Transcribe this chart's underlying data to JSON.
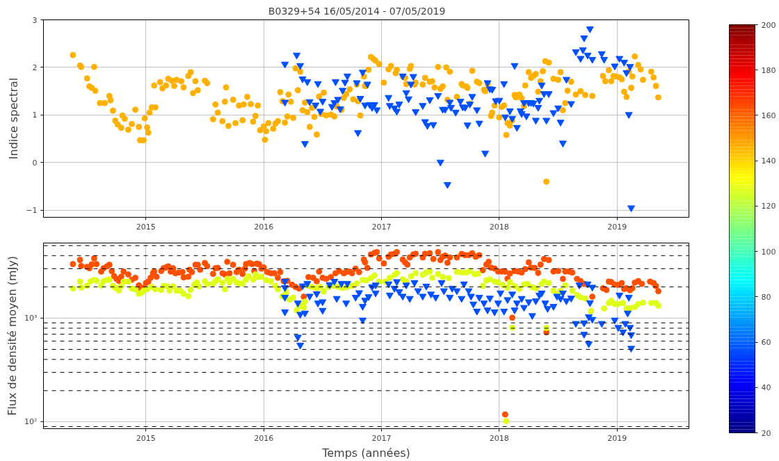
{
  "chart_data": [
    {
      "type": "scatter",
      "title": "B0329+54       16/05/2014 - 07/05/2019",
      "ylabel": "Indice spectral",
      "xlim": [
        2014.13,
        2019.61
      ],
      "xticks": [
        2015,
        2016,
        2017,
        2018,
        2019
      ],
      "ylim": [
        -1.15,
        3
      ],
      "yticks": [
        {
          "value": -1,
          "label": "−1"
        },
        0,
        1,
        2,
        3
      ],
      "grid": true,
      "series": [
        {
          "color": "#ffb000",
          "marker": "circle",
          "x": [
            2014.38,
            2014.44,
            2014.45,
            2014.56,
            2014.5,
            2014.52,
            2014.54,
            2014.57,
            2014.61,
            2014.65,
            2014.69,
            2014.7,
            2014.72,
            2014.74,
            2014.76,
            2014.79,
            2014.8,
            2014.82,
            2014.85,
            2014.88,
            2014.91,
            2014.94,
            2014.95,
            2014.98,
            2014.99,
            2015.01,
            2015.02,
            2015.03,
            2015.05,
            2015.08,
            2015.07,
            2015.12,
            2015.14,
            2015.17,
            2015.19,
            2015.22,
            2015.24,
            2015.26,
            2015.3,
            2015.32,
            2015.36,
            2015.38,
            2015.4,
            2015.42,
            2015.44,
            2015.5,
            2015.52,
            2015.57,
            2015.59,
            2015.61,
            2015.65,
            2015.67,
            2015.68,
            2015.7,
            2015.74,
            2015.76,
            2015.79,
            2015.82,
            2015.86,
            2015.83,
            2015.89,
            2015.91,
            2015.93,
            2015.95,
            2015.97,
            2016.0,
            2016.01,
            2016.02,
            2016.04,
            2016.08,
            2016.1,
            2016.12,
            2016.14,
            2016.16,
            2016.18,
            2016.2,
            2016.21,
            2016.23,
            2016.25,
            2016.27,
            2016.29,
            2016.31,
            2016.33,
            2016.35,
            2016.37,
            2016.39,
            2016.41,
            2016.43,
            2016.45,
            2016.47,
            2016.49,
            2016.51,
            2016.53,
            2016.57,
            2016.6,
            2016.62,
            2016.66,
            2016.68,
            2016.7,
            2016.73,
            2016.76,
            2016.79,
            2016.8,
            2016.82,
            2016.85,
            2016.86,
            2016.89,
            2016.91,
            2016.93,
            2016.95,
            2016.98,
            2016.87,
            2017.02,
            2017.06,
            2017.08,
            2017.12,
            2017.13,
            2017.18,
            2017.2,
            2017.21,
            2017.24,
            2017.25,
            2017.28,
            2017.29,
            2017.35,
            2017.37,
            2017.41,
            2017.43,
            2017.45,
            2017.48,
            2017.5,
            2017.52,
            2017.55,
            2017.56,
            2017.58,
            2017.64,
            2017.68,
            2017.69,
            2017.72,
            2017.73,
            2017.75,
            2017.77,
            2017.81,
            2017.83,
            2017.87,
            2017.88,
            2017.9,
            2017.93,
            2017.94,
            2017.96,
            2018.0,
            2018.02,
            2018.04,
            2018.06,
            2018.07,
            2018.09,
            2018.11,
            2018.13,
            2018.14,
            2018.17,
            2018.19,
            2018.21,
            2018.22,
            2018.25,
            2018.27,
            2018.29,
            2018.31,
            2018.33,
            2018.35,
            2018.37,
            2018.39,
            2018.4,
            2018.42,
            2018.46,
            2018.5,
            2018.52,
            2018.54,
            2018.56,
            2018.58,
            2018.61,
            2018.65,
            2018.69,
            2018.73,
            2018.79,
            2018.88,
            2018.9,
            2018.93,
            2018.95,
            2018.97,
            2018.99,
            2019.02,
            2019.04,
            2019.06,
            2019.08,
            2019.1,
            2019.12,
            2019.13,
            2019.15,
            2019.18,
            2019.2,
            2019.22,
            2019.29,
            2019.31,
            2019.33,
            2019.35
          ],
          "values": [
            2.26,
            2.04,
            2.01,
            2.01,
            1.77,
            1.6,
            1.57,
            1.51,
            1.25,
            1.25,
            1.4,
            1.31,
            1.09,
            0.88,
            0.8,
            0.73,
            0.99,
            0.92,
            0.69,
            0.81,
            1.11,
            0.75,
            0.47,
            0.47,
            0.93,
            0.74,
            0.63,
            1.05,
            1.16,
            1.16,
            1.62,
            1.69,
            1.56,
            1.62,
            1.76,
            1.72,
            1.61,
            1.74,
            1.71,
            1.58,
            1.82,
            1.9,
            1.46,
            1.71,
            1.52,
            1.72,
            1.67,
            0.91,
            1.22,
            1.05,
            0.87,
            1.28,
            1.58,
            0.77,
            1.32,
            0.83,
            1.2,
            0.89,
            1.38,
            1.22,
            1.23,
            0.86,
            0.98,
            1.2,
            0.68,
            0.76,
            0.48,
            0.66,
            0.83,
            0.71,
            0.82,
            0.87,
            1.48,
            1.29,
            0.84,
            0.97,
            1.43,
            1.28,
            0.94,
            1.98,
            1.52,
            1.91,
            1.1,
            1.26,
            1.06,
            0.75,
            1.15,
            0.96,
            0.59,
            1.39,
            1.02,
            1.47,
            0.99,
            1.01,
            0.97,
            1.18,
            1.11,
            1.36,
            1.44,
            1.54,
            1.33,
            1.64,
            1.29,
            0.99,
            1.81,
            1.61,
            1.95,
            2.22,
            2.18,
            2.14,
            2.07,
            1.61,
            1.68,
            1.96,
            2.03,
            1.88,
            1.95,
            1.81,
            1.78,
            1.65,
            1.97,
            2.03,
            1.64,
            1.68,
            1.64,
            1.78,
            1.7,
            1.71,
            1.58,
            2.01,
            1.55,
            1.6,
            2.0,
            1.32,
            1.91,
            1.38,
            1.65,
            1.62,
            1.6,
            1.57,
            1.24,
            1.93,
            1.7,
            1.67,
            1.53,
            1.5,
            1.65,
            0.98,
            1.05,
            1.2,
            0.95,
            1.17,
            1.2,
            0.58,
            0.83,
            0.78,
            0.89,
            1.42,
            1.37,
            1.43,
            1.35,
            1.19,
            1.62,
            1.9,
            1.78,
            1.82,
            1.86,
            1.49,
            1.71,
            1.92,
            2.13,
            -0.4,
            2.1,
            1.76,
            1.74,
            1.9,
            1.1,
            1.25,
            1.51,
            1.7,
            1.43,
            1.5,
            1.42,
            1.4,
            1.82,
            1.71,
            1.94,
            1.71,
            1.82,
            1.81,
            1.79,
            1.75,
            1.49,
            1.38,
            1.92,
            1.57,
            1.81,
            2.23,
            2.05,
            1.96,
            1.74,
            1.91,
            1.79,
            1.61,
            1.37
          ]
        },
        {
          "color": "#0050ff",
          "marker": "triangle",
          "x": [
            2016.18,
            2016.28,
            2016.31,
            2016.33,
            2016.37,
            2016.18,
            2016.35,
            2016.39,
            2016.44,
            2016.46,
            2016.48,
            2016.5,
            2016.58,
            2016.6,
            2016.61,
            2016.63,
            2016.65,
            2016.67,
            2016.69,
            2016.71,
            2016.79,
            2016.8,
            2016.82,
            2016.84,
            2016.86,
            2016.88,
            2016.9,
            2016.92,
            2016.94,
            2016.96,
            2017.06,
            2017.07,
            2017.11,
            2017.13,
            2017.15,
            2017.18,
            2017.21,
            2017.23,
            2017.25,
            2017.27,
            2017.29,
            2017.35,
            2017.37,
            2017.39,
            2017.41,
            2017.44,
            2017.48,
            2017.5,
            2017.52,
            2017.54,
            2017.56,
            2017.58,
            2017.59,
            2017.63,
            2017.67,
            2017.69,
            2017.71,
            2017.73,
            2017.75,
            2017.77,
            2017.81,
            2017.83,
            2017.88,
            2017.9,
            2017.92,
            2017.94,
            2017.97,
            2018.0,
            2018.04,
            2018.05,
            2018.09,
            2018.11,
            2018.13,
            2018.15,
            2018.18,
            2018.19,
            2018.21,
            2018.23,
            2018.25,
            2018.27,
            2018.29,
            2018.31,
            2018.33,
            2018.34,
            2018.36,
            2018.38,
            2018.4,
            2018.42,
            2018.46,
            2018.5,
            2018.52,
            2018.54,
            2018.57,
            2018.61,
            2018.65,
            2018.69,
            2018.71,
            2018.72,
            2018.75,
            2018.77,
            2018.79,
            2018.87,
            2018.89,
            2018.98,
            2019.02,
            2019.06,
            2019.08,
            2019.1,
            2019.11,
            2019.12
          ],
          "values": [
            2.07,
            2.26,
            2.04,
            1.76,
            1.7,
            1.27,
            0.4,
            1.28,
            1.21,
            1.66,
            1.08,
            1.29,
            1.18,
            1.26,
            1.7,
            1.33,
            1.13,
            1.52,
            1.69,
            1.82,
            1.68,
            0.63,
            1.35,
            1.9,
            1.21,
            1.65,
            1.22,
            1.16,
            1.22,
            1.11,
            1.37,
            1.2,
            1.15,
            1.08,
            1.23,
            1.82,
            1.47,
            1.34,
            1.65,
            1.81,
            1.07,
            1.2,
            0.86,
            0.78,
            1.32,
            0.8,
            1.41,
            0.01,
            1.12,
            1.12,
            -0.46,
            1.27,
            1.16,
            1.06,
            1.29,
            1.17,
            1.16,
            0.79,
            1.23,
            1.39,
            1.11,
            0.83,
            0.2,
            1.68,
            1.55,
            1.54,
            1.3,
            1.31,
            1.66,
            0.96,
            1.09,
            0.93,
            2.04,
            0.74,
            1.09,
            1.03,
            1.26,
            0.98,
            1.26,
            1.26,
            1.25,
            0.89,
            1.16,
            1.31,
            1.63,
            1.45,
            0.89,
            1.45,
            1.05,
            1.15,
            0.85,
            0.41,
            1.75,
            1.24,
            2.33,
            2.19,
            2.37,
            2.62,
            2.26,
            2.81,
            2.17,
            2.29,
            2.17,
            2.03,
            2.19,
            2.11,
            1.89,
            1.01,
            2.02,
            -0.95
          ]
        }
      ]
    },
    {
      "type": "scatter",
      "xlabel": "Temps (années)",
      "ylabel": "Flux de densité moyen (mJy)",
      "log": true,
      "xlim": [
        2014.13,
        2019.61
      ],
      "xticks": [
        2015,
        2016,
        2017,
        2018,
        2019
      ],
      "ylim": [
        86,
        5300
      ],
      "yticks": [
        {
          "value": 100,
          "label": "10²"
        },
        {
          "value": 1000,
          "label": "10³"
        }
      ],
      "grid": true,
      "clim": [
        20,
        200
      ],
      "cticks": [
        20,
        40,
        60,
        80,
        100,
        120,
        140,
        160,
        180,
        200
      ],
      "ref_lines": [
        {
          "axis": "y",
          "value": 90,
          "color": "#000000",
          "line_style": "dashed"
        },
        {
          "axis": "y",
          "value": 200,
          "color": "#000000",
          "line_style": "dashed"
        },
        {
          "axis": "y",
          "value": 300,
          "color": "#000000",
          "line_style": "dashed"
        },
        {
          "axis": "y",
          "value": 400,
          "color": "#000000",
          "line_style": "dashed"
        },
        {
          "axis": "y",
          "value": 500,
          "color": "#000000",
          "line_style": "dashed"
        },
        {
          "axis": "y",
          "value": 600,
          "color": "#000000",
          "line_style": "dashed"
        },
        {
          "axis": "y",
          "value": 700,
          "color": "#000000",
          "line_style": "dashed"
        },
        {
          "axis": "y",
          "value": 800,
          "color": "#000000",
          "line_style": "dashed"
        },
        {
          "axis": "y",
          "value": 900,
          "color": "#000000",
          "line_style": "dashed"
        },
        {
          "axis": "y",
          "value": 2000,
          "color": "#000000",
          "line_style": "dashed"
        },
        {
          "axis": "y",
          "value": 3000,
          "color": "#000000",
          "line_style": "dashed"
        },
        {
          "axis": "y",
          "value": 4000,
          "color": "#000000",
          "line_style": "dashed"
        },
        {
          "axis": "y",
          "value": 5000,
          "color": "#000000",
          "line_style": "dashed"
        }
      ],
      "series": [
        {
          "color": "#ff5000",
          "marker": "circle",
          "x": [
            2014.38,
            2014.44,
            2014.45,
            2014.5,
            2014.52,
            2014.54,
            2014.56,
            2014.58,
            2014.62,
            2014.64,
            2014.67,
            2014.69,
            2014.71,
            2014.73,
            2014.75,
            2014.77,
            2014.79,
            2014.81,
            2014.85,
            2014.88,
            2014.91,
            2014.94,
            2014.95,
            2014.98,
            2015.0,
            2015.02,
            2015.04,
            2015.06,
            2015.07,
            2015.09,
            2015.13,
            2015.15,
            2015.17,
            2015.19,
            2015.21,
            2015.23,
            2015.25,
            2015.28,
            2015.31,
            2015.32,
            2015.36,
            2015.37,
            2015.39,
            2015.42,
            2015.44,
            2015.46,
            2015.5,
            2015.52,
            2015.57,
            2015.59,
            2015.61,
            2015.65,
            2015.67,
            2015.69,
            2015.71,
            2015.74,
            2015.77,
            2015.79,
            2015.82,
            2015.84,
            2015.85,
            2015.88,
            2015.9,
            2015.92,
            2015.94,
            2015.96,
            2015.98,
            2016.0,
            2016.03,
            2016.06,
            2016.09,
            2016.12,
            2016.14,
            2016.17,
            2016.2,
            2016.24,
            2016.27,
            2016.3,
            2016.34,
            2016.38,
            2016.42,
            2016.45,
            2016.47,
            2016.5,
            2016.53,
            2016.57,
            2016.61,
            2016.64,
            2016.68,
            2016.7,
            2016.73,
            2016.75,
            2016.78,
            2016.81,
            2016.85,
            2016.86,
            2016.88,
            2016.91,
            2016.94,
            2016.96,
            2016.98,
            2017.02,
            2017.06,
            2017.08,
            2017.11,
            2017.13,
            2017.18,
            2017.2,
            2017.22,
            2017.24,
            2017.27,
            2017.29,
            2017.35,
            2017.37,
            2017.41,
            2017.44,
            2017.48,
            2017.5,
            2017.52,
            2017.54,
            2017.56,
            2017.58,
            2017.64,
            2017.68,
            2017.71,
            2017.74,
            2017.77,
            2017.8,
            2017.83,
            2017.86,
            2017.89,
            2017.91,
            2017.93,
            2017.96,
            2017.99,
            2018.02,
            2018.05,
            2018.07,
            2018.09,
            2018.11,
            2018.05,
            2018.13,
            2018.16,
            2018.19,
            2018.22,
            2018.25,
            2018.27,
            2018.3,
            2018.33,
            2018.35,
            2018.38,
            2018.4,
            2018.42,
            2018.46,
            2018.5,
            2018.54,
            2018.56,
            2018.59,
            2018.62,
            2018.66,
            2018.69,
            2018.72,
            2018.79,
            2018.88,
            2018.91,
            2018.93,
            2018.95,
            2018.98,
            2019.01,
            2019.04,
            2019.06,
            2019.08,
            2019.11,
            2019.13,
            2019.15,
            2019.18,
            2019.21,
            2019.28,
            2019.31,
            2019.33,
            2019.35
          ],
          "values": [
            3320,
            3650,
            3190,
            3120,
            3030,
            3300,
            3770,
            3320,
            2810,
            3030,
            3160,
            3270,
            2840,
            2540,
            2390,
            2290,
            2510,
            2810,
            2640,
            2350,
            2450,
            2070,
            1930,
            1970,
            2180,
            2250,
            2450,
            2710,
            2810,
            2510,
            2850,
            3030,
            3080,
            3160,
            2810,
            3030,
            2710,
            2750,
            2780,
            2470,
            2510,
            2930,
            2780,
            3270,
            3270,
            2930,
            3400,
            3170,
            2670,
            3030,
            3050,
            2710,
            2640,
            3490,
            2710,
            3270,
            2780,
            2930,
            2670,
            3000,
            3320,
            3400,
            3320,
            2850,
            3350,
            3320,
            3000,
            3080,
            2780,
            2710,
            2710,
            2450,
            2780,
            2270,
            2290,
            2100,
            2000,
            1930,
            1610,
            2490,
            2450,
            2270,
            2810,
            2450,
            2390,
            2490,
            2710,
            2850,
            2710,
            2780,
            2810,
            2710,
            3000,
            2780,
            3670,
            3450,
            3050,
            4110,
            4260,
            4330,
            3760,
            3370,
            3910,
            4110,
            4180,
            4330,
            3670,
            3450,
            3280,
            3850,
            4110,
            4180,
            3850,
            4180,
            4220,
            3720,
            4330,
            3630,
            3910,
            4010,
            3420,
            3850,
            3850,
            4160,
            4050,
            4050,
            4220,
            3910,
            4050,
            2900,
            3280,
            3490,
            3070,
            3010,
            2820,
            2820,
            2800,
            2400,
            2690,
            1010,
            118,
            2850,
            2820,
            2750,
            2970,
            3450,
            3070,
            3050,
            2730,
            3280,
            3720,
            730,
            3630,
            2820,
            2850,
            2390,
            2820,
            2820,
            2750,
            2390,
            2280,
            2140,
            1610,
            1940,
            1870,
            2250,
            2230,
            2110,
            2090,
            2180,
            1910,
            1940,
            1860,
            1940,
            2200,
            2280,
            2140,
            2250,
            2180,
            2040,
            1820
          ]
        },
        {
          "color": "#dfff18",
          "marker": "circle",
          "x": [
            2014.38,
            2014.44,
            2014.45,
            2014.5,
            2014.53,
            2014.56,
            2014.58,
            2014.62,
            2014.64,
            2014.67,
            2014.69,
            2014.72,
            2014.74,
            2014.77,
            2014.79,
            2014.81,
            2014.85,
            2014.88,
            2014.91,
            2014.94,
            2014.96,
            2014.98,
            2015.01,
            2015.05,
            2015.08,
            2015.13,
            2015.15,
            2015.18,
            2015.2,
            2015.23,
            2015.26,
            2015.29,
            2015.32,
            2015.36,
            2015.38,
            2015.41,
            2015.43,
            2015.45,
            2015.5,
            2015.52,
            2015.57,
            2015.59,
            2015.61,
            2015.65,
            2015.67,
            2015.69,
            2015.71,
            2015.74,
            2015.77,
            2015.79,
            2015.82,
            2015.85,
            2015.87,
            2015.91,
            2015.93,
            2015.95,
            2015.98,
            2016.02,
            2016.06,
            2016.1,
            2016.12,
            2016.16,
            2016.19,
            2016.22,
            2016.25,
            2016.28,
            2016.3,
            2016.32,
            2016.34,
            2016.35,
            2016.38,
            2016.41,
            2016.45,
            2016.48,
            2016.51,
            2016.55,
            2016.59,
            2016.63,
            2016.67,
            2016.71,
            2016.75,
            2016.79,
            2016.84,
            2016.87,
            2016.91,
            2016.94,
            2016.98,
            2017.03,
            2017.07,
            2017.11,
            2017.13,
            2017.18,
            2017.21,
            2017.25,
            2017.29,
            2017.35,
            2017.38,
            2017.41,
            2017.43,
            2017.48,
            2017.52,
            2017.57,
            2017.64,
            2017.68,
            2017.72,
            2017.75,
            2017.79,
            2017.82,
            2017.86,
            2017.89,
            2017.92,
            2017.96,
            2017.99,
            2018.03,
            2018.07,
            2018.09,
            2018.11,
            2018.06,
            2018.13,
            2018.17,
            2018.21,
            2018.24,
            2018.28,
            2018.31,
            2018.36,
            2018.38,
            2018.4,
            2018.42,
            2018.46,
            2018.5,
            2018.52,
            2018.56,
            2018.62,
            2018.66,
            2018.69,
            2018.73,
            2018.78,
            2018.89,
            2018.93,
            2018.95,
            2018.98,
            2019.01,
            2019.05,
            2019.08,
            2019.11,
            2019.15,
            2019.18,
            2019.22,
            2019.29,
            2019.33,
            2019.35
          ],
          "values": [
            1930,
            2250,
            1970,
            2050,
            2270,
            2330,
            2300,
            2070,
            2270,
            2330,
            2350,
            2050,
            1950,
            1850,
            2030,
            2250,
            2250,
            1930,
            1900,
            1720,
            1750,
            1840,
            1900,
            2000,
            1900,
            1870,
            2050,
            2030,
            1850,
            2030,
            1840,
            1840,
            1720,
            1630,
            1870,
            2100,
            2210,
            2020,
            2270,
            2130,
            2160,
            2270,
            2370,
            2180,
            1900,
            2390,
            2210,
            2390,
            2210,
            2160,
            2160,
            2350,
            2540,
            2350,
            2640,
            2490,
            2510,
            2330,
            2270,
            2050,
            1900,
            1630,
            1780,
            1510,
            1580,
            1190,
            1330,
            1310,
            1270,
            1440,
            2050,
            2000,
            1950,
            2000,
            1810,
            2000,
            2050,
            2000,
            1950,
            2000,
            2050,
            2160,
            2330,
            2310,
            2430,
            2580,
            2250,
            2250,
            2450,
            2620,
            2720,
            2370,
            2250,
            2530,
            2720,
            2620,
            2750,
            2820,
            2450,
            2660,
            2490,
            2430,
            2800,
            2750,
            2750,
            2850,
            2660,
            2690,
            2040,
            2310,
            2370,
            2250,
            2220,
            2090,
            1970,
            2220,
            810,
            102,
            2040,
            1910,
            2110,
            2140,
            1990,
            1940,
            2140,
            2250,
            805,
            2180,
            1840,
            1710,
            1840,
            2070,
            1840,
            1670,
            1590,
            1550,
            1170,
            1240,
            1400,
            1470,
            1370,
            1370,
            1400,
            1240,
            1250,
            1280,
            1370,
            1410,
            1400,
            1400,
            1320
          ]
        },
        {
          "color": "#0050ff",
          "marker": "triangle",
          "x": [
            2016.18,
            2016.18,
            2016.18,
            2016.18,
            2016.29,
            2016.29,
            2016.31,
            2016.31,
            2016.35,
            2016.33,
            2016.37,
            2016.39,
            2016.45,
            2016.46,
            2016.5,
            2016.5,
            2016.56,
            2016.6,
            2016.62,
            2016.66,
            2016.7,
            2016.71,
            2016.78,
            2016.81,
            2016.84,
            2016.84,
            2016.86,
            2016.89,
            2016.92,
            2016.95,
            2016.95,
            2017.06,
            2017.07,
            2017.11,
            2017.13,
            2017.15,
            2017.18,
            2017.21,
            2017.24,
            2017.28,
            2017.31,
            2017.35,
            2017.38,
            2017.42,
            2017.46,
            2017.51,
            2017.53,
            2017.58,
            2017.6,
            2017.64,
            2017.68,
            2017.7,
            2017.74,
            2017.76,
            2017.78,
            2017.81,
            2017.83,
            2017.87,
            2017.9,
            2017.92,
            2017.96,
            2017.99,
            2018.01,
            2018.04,
            2018.07,
            2018.11,
            2018.13,
            2018.15,
            2018.19,
            2018.21,
            2018.25,
            2018.28,
            2018.31,
            2018.34,
            2018.36,
            2018.39,
            2018.41,
            2018.46,
            2018.49,
            2018.52,
            2018.54,
            2018.57,
            2018.61,
            2018.65,
            2018.68,
            2018.72,
            2018.72,
            2018.75,
            2018.76,
            2018.76,
            2018.77,
            2018.79,
            2018.79,
            2018.87,
            2018.98,
            2019.01,
            2019.02,
            2019.05,
            2019.07,
            2019.09,
            2019.1,
            2019.11,
            2019.12,
            2019.12
          ],
          "values": [
            2270,
            1970,
            1590,
            1150,
            1400,
            657,
            550,
            1090,
            1120,
            2050,
            2160,
            1630,
            1720,
            1400,
            1190,
            1440,
            2100,
            2270,
            1550,
            2160,
            1400,
            2160,
            1590,
            1760,
            1300,
            960,
            1490,
            1610,
            2010,
            1750,
            2090,
            2140,
            1670,
            1940,
            2250,
            1800,
            1630,
            2090,
            1550,
            2200,
            1840,
            1630,
            2040,
            1710,
            1590,
            2200,
            1840,
            1590,
            1940,
            1840,
            1550,
            2140,
            1840,
            1630,
            1370,
            1170,
            1590,
            1400,
            1200,
            1560,
            1150,
            1400,
            1750,
            1170,
            1510,
            1710,
            1200,
            1400,
            1550,
            1270,
            1440,
            1060,
            1470,
            1670,
            1750,
            1400,
            1240,
            1300,
            1630,
            1550,
            1750,
            1470,
            1560,
            890,
            2090,
            900,
            700,
            2140,
            1030,
            567,
            1410,
            975,
            1990,
            890,
            960,
            815,
            1670,
            736,
            890,
            1120,
            1590,
            815,
            693,
            513
          ]
        }
      ]
    }
  ]
}
